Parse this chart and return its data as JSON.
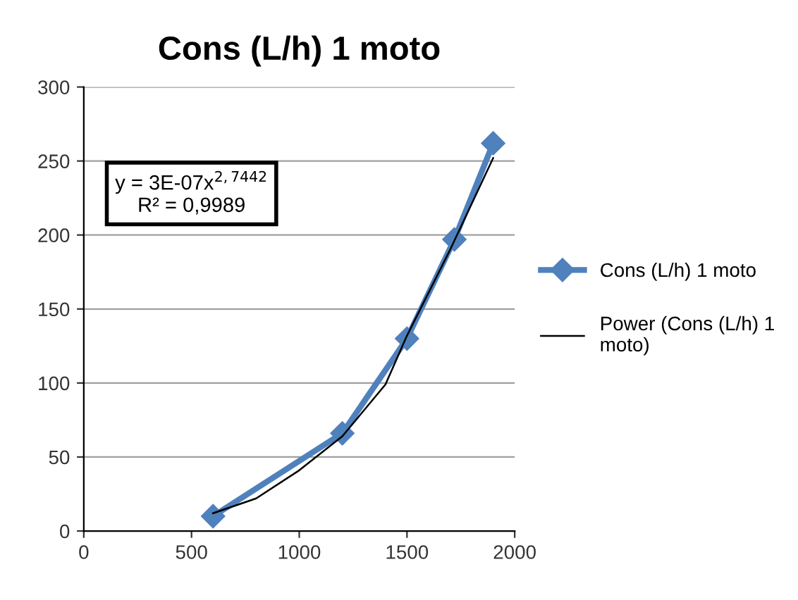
{
  "chart_data": {
    "type": "line",
    "title": "Cons (L/h) 1 moto",
    "series": [
      {
        "name": "Cons (L/h) 1 moto",
        "color": "#4f81bd",
        "x": [
          600,
          1200,
          1500,
          1720,
          1900
        ],
        "values": [
          10,
          66,
          130,
          197,
          262
        ],
        "marker": "diamond"
      },
      {
        "name": "Power (Cons (L/h) 1 moto)",
        "color": "#000000",
        "x": [
          600,
          800,
          1000,
          1200,
          1400,
          1500,
          1700,
          1900
        ],
        "values": [
          12,
          22,
          41,
          64,
          99,
          132,
          190,
          252
        ],
        "marker": "none"
      }
    ],
    "xlim": [
      0,
      2000
    ],
    "xticks": [
      0,
      500,
      1000,
      1500,
      2000
    ],
    "ylim": [
      0,
      300
    ],
    "yticks": [
      0,
      50,
      100,
      150,
      200,
      250,
      300
    ],
    "grid": "y",
    "legend": "right",
    "annotations": [
      "y = 3E-07x$^{2,7442}$\nR² = 0,9989"
    ]
  }
}
